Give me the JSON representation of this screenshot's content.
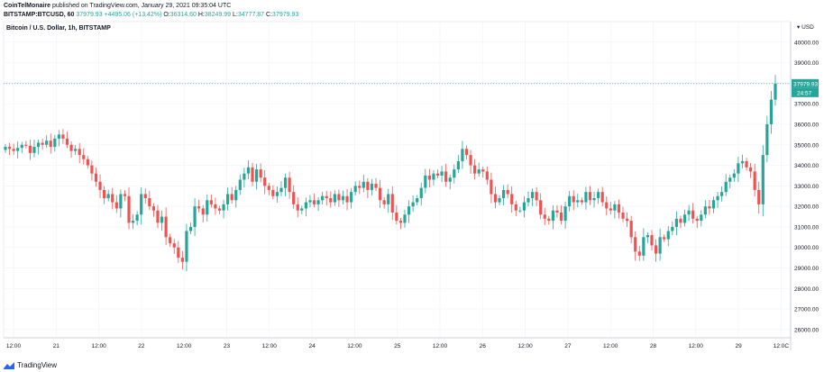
{
  "header": {
    "publisher": "CoinTelMonaire",
    "published_text": "published on TradingView.com, January 29, 2021 09:35:04 UTC",
    "symbol": "BITSTAMP:BTCUSD, 60",
    "last": "37979.93",
    "change": "+4495.06 (+13.42%)",
    "o_label": "O:",
    "o_value": "36314.60",
    "h_label": "H:",
    "h_value": "38249.99",
    "l_label": "L:",
    "l_value": "34777.87",
    "c_label": "C:",
    "c_value": "37979.93"
  },
  "chart_data": {
    "type": "candlestick",
    "title": "Bitcoin / U.S. Dollar, 1h, BITSTAMP",
    "currency_label": "USD",
    "ylim": [
      25600,
      41000
    ],
    "y_ticks": [
      "26000.00",
      "27000.00",
      "28000.00",
      "29000.00",
      "30000.00",
      "31000.00",
      "32000.00",
      "33000.00",
      "34000.00",
      "35000.00",
      "36000.00",
      "37000.00",
      "38000.00",
      "39000.00",
      "40000.00"
    ],
    "x_ticks": [
      "12:00",
      "21",
      "12:00",
      "22",
      "12:00",
      "23",
      "12:00",
      "24",
      "12:00",
      "25",
      "12:00",
      "26",
      "12:00",
      "27",
      "12:00",
      "28",
      "12:00",
      "29",
      "12:0C"
    ],
    "last_price_label": "37979.93",
    "countdown_label": "24:57",
    "last_price": 37979.93,
    "colors": {
      "up": "#26a69a",
      "down": "#ef5350",
      "grid": "#f0f3fa",
      "last_line": "#26a69a"
    },
    "close_series": [
      34900,
      34800,
      34700,
      34850,
      35000,
      34950,
      34600,
      34900,
      35100,
      35000,
      35200,
      34900,
      35300,
      35500,
      35300,
      35000,
      34700,
      34800,
      34500,
      34300,
      34000,
      33600,
      33200,
      32800,
      32400,
      32600,
      32200,
      31900,
      32600,
      32500,
      31200,
      31300,
      31600,
      32600,
      32400,
      32000,
      31800,
      31200,
      31500,
      30500,
      30200,
      30000,
      29500,
      29300,
      30800,
      31000,
      32000,
      31900,
      31600,
      32300,
      32100,
      31900,
      31800,
      32100,
      32600,
      32300,
      32800,
      33300,
      33600,
      33900,
      33200,
      33800,
      33400,
      33000,
      32800,
      32500,
      32700,
      32900,
      33400,
      32700,
      32100,
      31800,
      31900,
      32200,
      32300,
      32100,
      32300,
      32500,
      32400,
      32200,
      32600,
      32300,
      32500,
      32200,
      32700,
      33000,
      32900,
      33200,
      32800,
      33100,
      32900,
      32300,
      32100,
      32600,
      31700,
      31300,
      31200,
      31600,
      32000,
      32200,
      32400,
      32900,
      33500,
      33300,
      33600,
      33500,
      33700,
      33200,
      33400,
      33800,
      34200,
      34800,
      34500,
      34000,
      33600,
      33800,
      33700,
      33300,
      32600,
      32200,
      32400,
      32800,
      32600,
      32100,
      31800,
      31800,
      32200,
      32400,
      32700,
      32300,
      31600,
      31400,
      31300,
      31800,
      31700,
      31300,
      32000,
      32500,
      32200,
      32300,
      32200,
      32700,
      32300,
      32400,
      32700,
      32200,
      31900,
      31800,
      32100,
      31700,
      31400,
      31300,
      30500,
      29800,
      29600,
      30500,
      30600,
      30100,
      29700,
      30500,
      30400,
      30800,
      31000,
      31400,
      31200,
      31600,
      31800,
      31400,
      31300,
      31600,
      32000,
      31900,
      32300,
      32500,
      32700,
      33200,
      33400,
      33600,
      34100,
      34200,
      33900,
      33700,
      32800,
      32100,
      34500,
      36000,
      37200,
      37979
    ]
  },
  "footer": {
    "brand": "TradingView"
  }
}
